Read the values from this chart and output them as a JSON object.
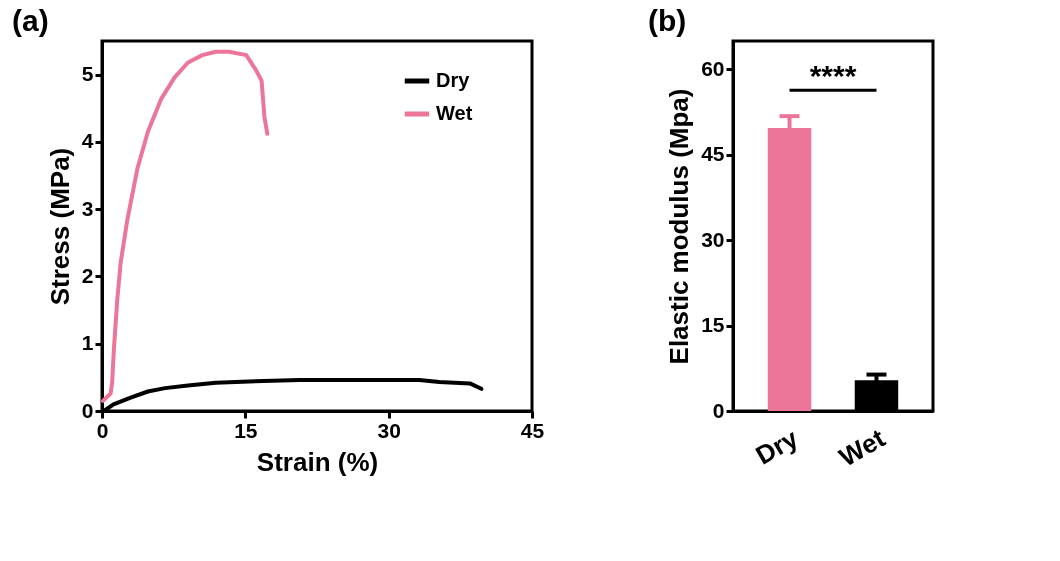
{
  "chart_data": [
    {
      "type": "line",
      "title": "(a)",
      "xlabel": "Strain (%)",
      "ylabel": "Stress (MPa)",
      "xlim": [
        0,
        45
      ],
      "xticks": [
        0,
        15,
        30,
        45
      ],
      "ylim": [
        0,
        5.5
      ],
      "yticks": [
        0,
        1,
        2,
        3,
        4,
        5
      ],
      "grid": false,
      "legend": "top right",
      "line_style": "solid",
      "series": [
        {
          "name": "Dry",
          "color": "#000000",
          "x": [
            0.2,
            1.2,
            3.0,
            4.8,
            6.6,
            9.0,
            11.9,
            15.4,
            20.7,
            26.0,
            33.2,
            35.3,
            38.5,
            39.7
          ],
          "values": [
            0.0,
            0.1,
            0.2,
            0.29,
            0.34,
            0.38,
            0.42,
            0.44,
            0.46,
            0.46,
            0.46,
            0.43,
            0.41,
            0.33
          ]
        },
        {
          "name": "Wet",
          "color": "#ec7699",
          "x": [
            0.1,
            0.9,
            1.06,
            1.24,
            1.6,
            1.95,
            2.66,
            3.7,
            4.8,
            6.2,
            7.6,
            9.0,
            10.5,
            11.9,
            13.3,
            15.1,
            16.1,
            16.7,
            17.0,
            17.3
          ],
          "values": [
            0.15,
            0.26,
            0.42,
            0.91,
            1.66,
            2.2,
            2.85,
            3.6,
            4.15,
            4.64,
            4.96,
            5.18,
            5.29,
            5.34,
            5.34,
            5.29,
            5.07,
            4.91,
            4.37,
            4.12
          ]
        }
      ]
    },
    {
      "type": "bar",
      "title": "(b)",
      "ylabel": "Elastic modulus (Mpa)",
      "categories": [
        "Dry",
        "Wet"
      ],
      "values": [
        49.7,
        5.4
      ],
      "colors": [
        "#ec7699",
        "#000000"
      ],
      "errors": [
        2.1,
        1.0
      ],
      "ylim": [
        0,
        65
      ],
      "yticks": [
        0,
        15,
        30,
        45,
        60
      ],
      "grid": false,
      "annotations": [
        "****"
      ]
    }
  ]
}
